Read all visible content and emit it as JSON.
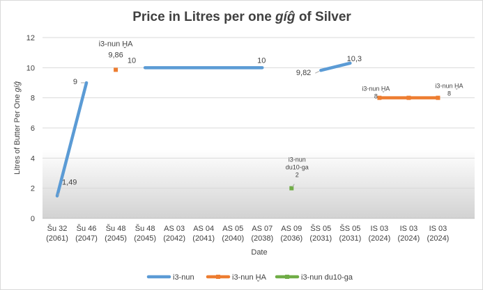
{
  "chart_data": {
    "type": "line",
    "title": "Price in Litres per one gíĝ of Silver",
    "xlabel": "Date",
    "ylabel": "Litres of Butter Per One gíĝ",
    "ylim": [
      0,
      12
    ],
    "ystep": 2,
    "grid": true,
    "legend_position": "bottom",
    "categories": [
      [
        "Šu 32",
        "(2061)"
      ],
      [
        "Šu 46",
        "(2047)"
      ],
      [
        "Šu 48",
        "(2045)"
      ],
      [
        "Šu 48",
        "(2045)"
      ],
      [
        "AS 03",
        "(2042)"
      ],
      [
        "AS 04",
        "(2041)"
      ],
      [
        "AS 05",
        "(2040)"
      ],
      [
        "AS 07",
        "(2038)"
      ],
      [
        "AS 09",
        "(2036)"
      ],
      [
        "ŠS 05",
        "(2031)"
      ],
      [
        "ŠS 05",
        "(2031)"
      ],
      [
        "IS 03",
        "(2024)"
      ],
      [
        "IS 03",
        "(2024)"
      ],
      [
        "IS 03",
        "(2024)"
      ]
    ],
    "series": [
      {
        "name": "i3-nun",
        "color": "#5b9bd5",
        "values": [
          1.49,
          9,
          null,
          10,
          10,
          10,
          10,
          10,
          null,
          9.82,
          10.3,
          null,
          null,
          null
        ],
        "labels": [
          {
            "index": 0,
            "lines": [
              "1,49"
            ]
          },
          {
            "index": 1,
            "lines": [
              "9"
            ]
          },
          {
            "index": 3,
            "lines": [
              "10"
            ]
          },
          {
            "index": 7,
            "lines": [
              "10"
            ]
          },
          {
            "index": 9,
            "lines": [
              "9,82"
            ]
          },
          {
            "index": 10,
            "lines": [
              "10,3"
            ]
          }
        ]
      },
      {
        "name": "i3-nun ḪA",
        "color": "#ed7d31",
        "values": [
          null,
          null,
          9.86,
          null,
          null,
          null,
          null,
          null,
          null,
          null,
          null,
          8,
          8,
          8
        ],
        "labels": [
          {
            "index": 2,
            "lines": [
              "i3-nun ḪA",
              "9,86"
            ]
          },
          {
            "index": 11,
            "lines": [
              "i3-nun ḪA",
              "8"
            ]
          },
          {
            "index": 13,
            "lines": [
              "i3-nun ḪA",
              "8"
            ]
          }
        ]
      },
      {
        "name": "i3-nun du10-ga",
        "color": "#70ad47",
        "values": [
          null,
          null,
          null,
          null,
          null,
          null,
          null,
          null,
          2,
          null,
          null,
          null,
          null,
          null
        ],
        "labels": [
          {
            "index": 8,
            "lines": [
              "i3-nun",
              "du10-ga",
              "2"
            ]
          }
        ]
      }
    ]
  }
}
